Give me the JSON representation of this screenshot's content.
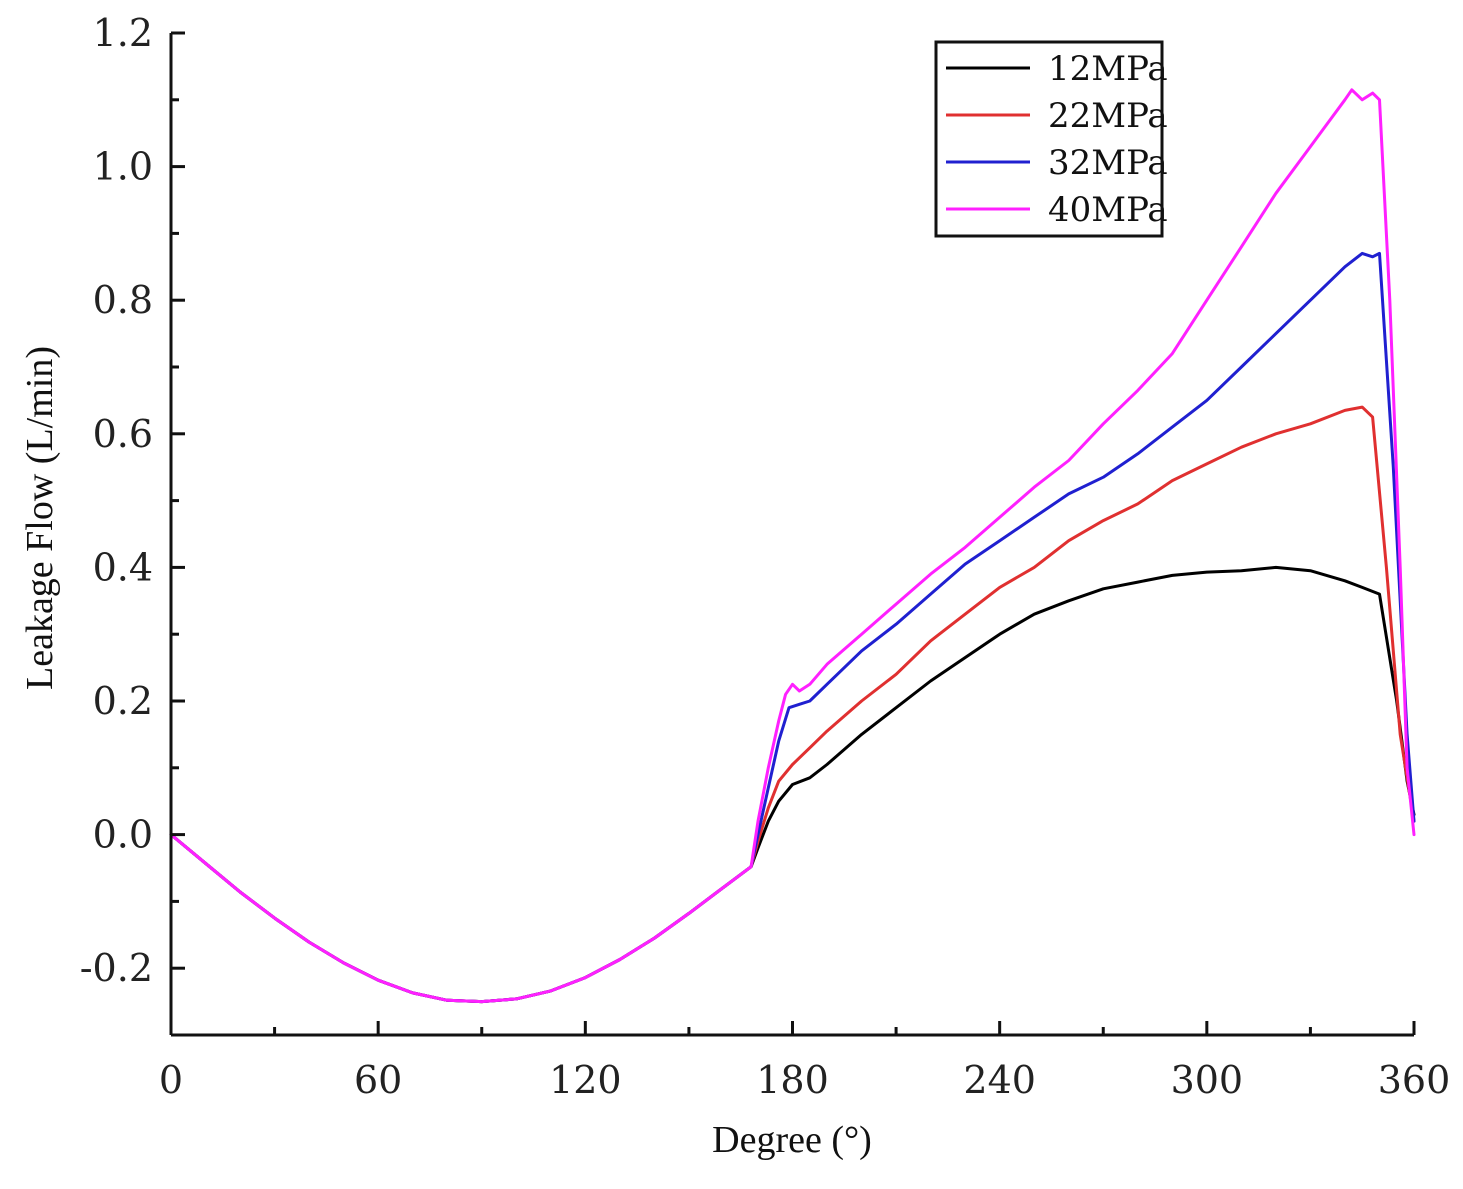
{
  "chart_data": {
    "type": "line",
    "title": "",
    "xlabel": "Degree (°)",
    "ylabel": "Leakage Flow (L/min)",
    "xlim": [
      0,
      360
    ],
    "ylim": [
      -0.3,
      1.2
    ],
    "xticks": [
      0,
      60,
      120,
      180,
      240,
      300,
      360
    ],
    "xtick_labels": [
      "0",
      "60",
      "120",
      "180",
      "240",
      "300",
      "360"
    ],
    "yticks": [
      -0.2,
      0.0,
      0.2,
      0.4,
      0.6,
      0.8,
      1.0,
      1.2
    ],
    "ytick_labels": [
      "-0.2",
      "0.0",
      "0.2",
      "0.4",
      "0.6",
      "0.8",
      "1.0",
      "1.2"
    ],
    "grid": false,
    "legend_position": "top-right",
    "series": [
      {
        "name": "12MPa",
        "color": "#000000",
        "x": [
          0,
          10,
          20,
          30,
          40,
          50,
          60,
          70,
          80,
          90,
          100,
          110,
          120,
          130,
          140,
          150,
          160,
          168,
          170,
          173,
          176,
          180,
          185,
          190,
          200,
          210,
          220,
          230,
          240,
          250,
          260,
          270,
          280,
          290,
          300,
          310,
          320,
          330,
          340,
          345,
          350,
          355,
          358,
          360
        ],
        "values": [
          0.0,
          -0.043,
          -0.086,
          -0.125,
          -0.161,
          -0.192,
          -0.218,
          -0.237,
          -0.248,
          -0.25,
          -0.246,
          -0.234,
          -0.214,
          -0.187,
          -0.155,
          -0.118,
          -0.079,
          -0.048,
          -0.02,
          0.02,
          0.05,
          0.075,
          0.085,
          0.105,
          0.15,
          0.19,
          0.23,
          0.265,
          0.3,
          0.33,
          0.35,
          0.368,
          0.378,
          0.388,
          0.393,
          0.395,
          0.4,
          0.395,
          0.38,
          0.37,
          0.36,
          0.2,
          0.08,
          0.03
        ]
      },
      {
        "name": "22MPa",
        "color": "#e03030",
        "x": [
          0,
          10,
          20,
          30,
          40,
          50,
          60,
          70,
          80,
          90,
          100,
          110,
          120,
          130,
          140,
          150,
          160,
          168,
          170,
          173,
          176,
          180,
          185,
          190,
          200,
          210,
          220,
          230,
          240,
          250,
          260,
          270,
          280,
          290,
          300,
          310,
          320,
          330,
          340,
          345,
          348,
          352,
          356,
          360
        ],
        "values": [
          0.0,
          -0.043,
          -0.086,
          -0.125,
          -0.161,
          -0.192,
          -0.218,
          -0.237,
          -0.248,
          -0.25,
          -0.246,
          -0.234,
          -0.214,
          -0.187,
          -0.155,
          -0.118,
          -0.079,
          -0.048,
          -0.01,
          0.04,
          0.08,
          0.105,
          0.13,
          0.155,
          0.2,
          0.24,
          0.29,
          0.33,
          0.37,
          0.4,
          0.44,
          0.47,
          0.495,
          0.53,
          0.555,
          0.58,
          0.6,
          0.615,
          0.635,
          0.64,
          0.625,
          0.4,
          0.15,
          0.02
        ]
      },
      {
        "name": "32MPa",
        "color": "#2020d0",
        "x": [
          0,
          10,
          20,
          30,
          40,
          50,
          60,
          70,
          80,
          90,
          100,
          110,
          120,
          130,
          140,
          150,
          160,
          168,
          170,
          173,
          176,
          179,
          182,
          185,
          190,
          200,
          210,
          220,
          230,
          240,
          250,
          260,
          270,
          280,
          290,
          300,
          310,
          320,
          330,
          340,
          345,
          348,
          350,
          354,
          358,
          360
        ],
        "values": [
          0.0,
          -0.043,
          -0.086,
          -0.125,
          -0.161,
          -0.192,
          -0.218,
          -0.237,
          -0.248,
          -0.25,
          -0.246,
          -0.234,
          -0.214,
          -0.187,
          -0.155,
          -0.118,
          -0.079,
          -0.048,
          0.0,
          0.07,
          0.14,
          0.19,
          0.195,
          0.2,
          0.225,
          0.275,
          0.315,
          0.36,
          0.405,
          0.44,
          0.475,
          0.51,
          0.535,
          0.57,
          0.61,
          0.65,
          0.7,
          0.75,
          0.8,
          0.85,
          0.87,
          0.865,
          0.87,
          0.55,
          0.15,
          0.02
        ]
      },
      {
        "name": "40MPa",
        "color": "#ff20ff",
        "x": [
          0,
          10,
          20,
          30,
          40,
          50,
          60,
          70,
          80,
          90,
          100,
          110,
          120,
          130,
          140,
          150,
          160,
          168,
          170,
          173,
          176,
          178,
          180,
          182,
          185,
          190,
          200,
          210,
          220,
          230,
          240,
          250,
          260,
          270,
          280,
          290,
          300,
          310,
          320,
          330,
          340,
          342,
          345,
          348,
          350,
          353,
          356,
          358,
          360
        ],
        "values": [
          0.0,
          -0.043,
          -0.086,
          -0.125,
          -0.161,
          -0.192,
          -0.218,
          -0.237,
          -0.248,
          -0.25,
          -0.246,
          -0.234,
          -0.214,
          -0.187,
          -0.155,
          -0.118,
          -0.079,
          -0.048,
          0.02,
          0.1,
          0.17,
          0.21,
          0.225,
          0.215,
          0.225,
          0.255,
          0.3,
          0.345,
          0.39,
          0.43,
          0.475,
          0.52,
          0.56,
          0.615,
          0.665,
          0.72,
          0.8,
          0.88,
          0.96,
          1.03,
          1.1,
          1.115,
          1.1,
          1.11,
          1.1,
          0.8,
          0.4,
          0.1,
          0.0
        ]
      }
    ]
  }
}
